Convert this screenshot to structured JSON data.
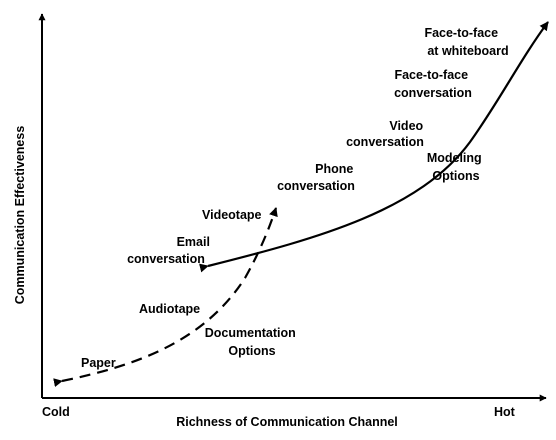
{
  "axes": {
    "y_label": "Communication Effectiveness",
    "x_label": "Richness of Communication Channel",
    "x_min_label": "Cold",
    "x_max_label": "Hot"
  },
  "curves": {
    "modeling_label_line1": "Modeling",
    "modeling_label_line2": "Options",
    "documentation_label_line1": "Documentation",
    "documentation_label_line2": "Options"
  },
  "channels": {
    "paper": "Paper",
    "audiotape": "Audiotape",
    "email_line1": "Email",
    "email_line2": "conversation",
    "videotape": "Videotape",
    "phone_line1": "Phone",
    "phone_line2": "conversation",
    "video_line1": "Video",
    "video_line2": "conversation",
    "f2f_line1": "Face-to-face",
    "f2f_line2": "conversation",
    "whiteboard_line1": "Face-to-face",
    "whiteboard_line2": "at whiteboard"
  }
}
